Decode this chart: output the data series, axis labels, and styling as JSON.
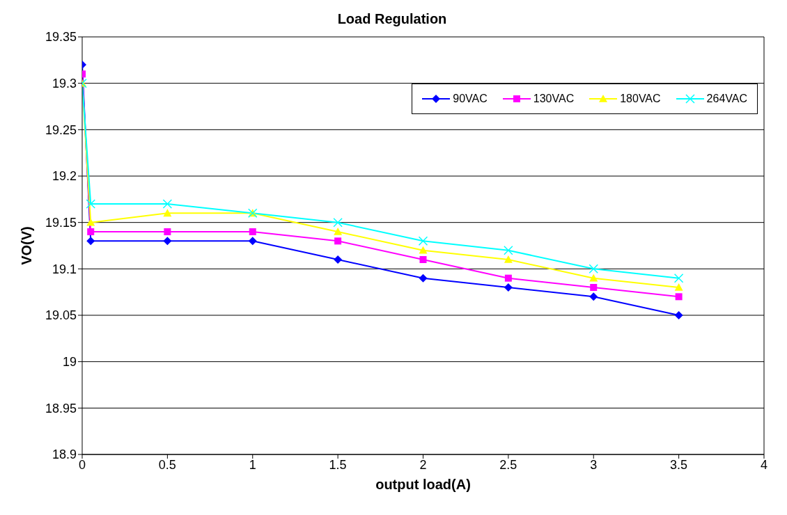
{
  "chart_data": {
    "type": "line",
    "title": "Load Regulation",
    "xlabel": "output load(A)",
    "ylabel": "VO(V)",
    "x": [
      0,
      0.05,
      0.5,
      1,
      1.5,
      2,
      2.5,
      3,
      3.5
    ],
    "series": [
      {
        "name": "90VAC",
        "color": "#0000ff",
        "marker": "diamond",
        "values": [
          19.32,
          19.13,
          19.13,
          19.13,
          19.11,
          19.09,
          19.08,
          19.07,
          19.05
        ]
      },
      {
        "name": "130VAC",
        "color": "#ff00ff",
        "marker": "square",
        "values": [
          19.31,
          19.14,
          19.14,
          19.14,
          19.13,
          19.11,
          19.09,
          19.08,
          19.07
        ]
      },
      {
        "name": "180VAC",
        "color": "#ffff00",
        "marker": "triangle",
        "values": [
          19.3,
          19.15,
          19.16,
          19.16,
          19.14,
          19.12,
          19.11,
          19.09,
          19.08
        ]
      },
      {
        "name": "264VAC",
        "color": "#00ffff",
        "marker": "cross",
        "values": [
          19.3,
          19.17,
          19.17,
          19.16,
          19.15,
          19.13,
          19.12,
          19.1,
          19.09
        ]
      }
    ],
    "xlim": [
      0,
      4
    ],
    "xticks": [
      0,
      0.5,
      1,
      1.5,
      2,
      2.5,
      3,
      3.5,
      4
    ],
    "ylim": [
      18.9,
      19.35
    ],
    "yticks": [
      18.9,
      18.95,
      19,
      19.05,
      19.1,
      19.15,
      19.2,
      19.25,
      19.3,
      19.35
    ],
    "grid": "y",
    "legend": "top right",
    "line_style": "solid"
  }
}
